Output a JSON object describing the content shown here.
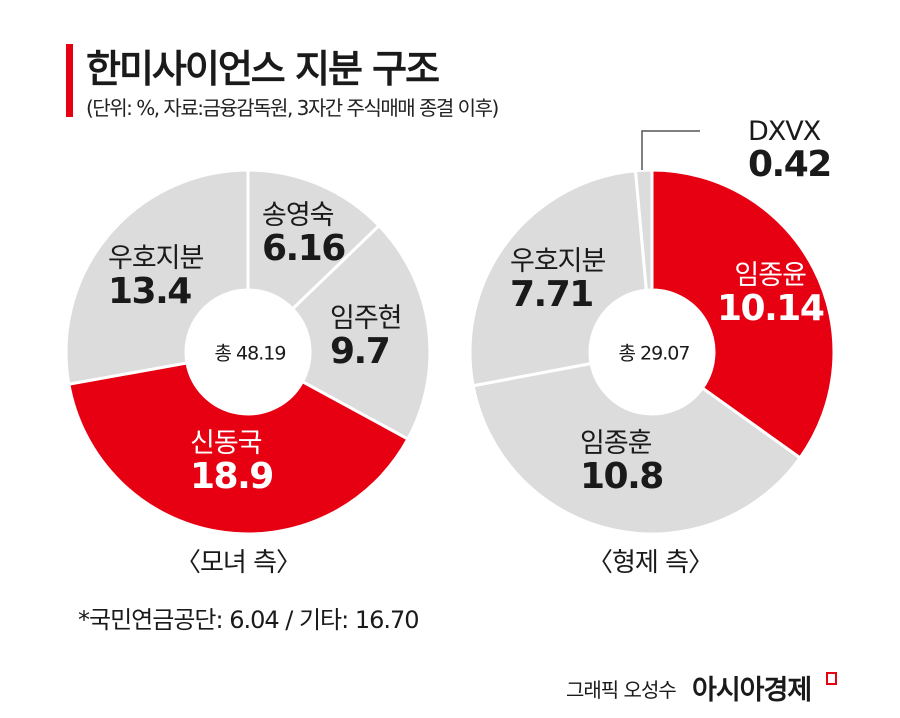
{
  "header": {
    "title": "한미사이언스 지분 구조",
    "subtitle": "(단위: %, 자료:금융감독원, 3자간 주식매매 종결 이후)"
  },
  "colors": {
    "accent": "#e60012",
    "neutral": "#dcdcdc",
    "separator": "#ffffff"
  },
  "chart_data": [
    {
      "type": "pie",
      "donut": true,
      "group_label": "〈모녀 측〉",
      "total_label": "총 48.19",
      "total": 48.19,
      "start": "top",
      "direction": "clockwise",
      "slices": [
        {
          "name": "송영숙",
          "value": 6.16,
          "value_label": "6.16",
          "color": "#dcdcdc"
        },
        {
          "name": "임주현",
          "value": 9.7,
          "value_label": "9.7",
          "color": "#dcdcdc"
        },
        {
          "name": "신동국",
          "value": 18.9,
          "value_label": "18.9",
          "color": "#e60012"
        },
        {
          "name": "우호지분",
          "value": 13.4,
          "value_label": "13.4",
          "color": "#dcdcdc"
        }
      ]
    },
    {
      "type": "pie",
      "donut": true,
      "group_label": "〈형제 측〉",
      "total_label": "총 29.07",
      "total": 29.07,
      "start": "top",
      "direction": "clockwise",
      "slices": [
        {
          "name": "임종윤",
          "value": 10.14,
          "value_label": "10.14",
          "color": "#e60012"
        },
        {
          "name": "임종훈",
          "value": 10.8,
          "value_label": "10.8",
          "color": "#dcdcdc"
        },
        {
          "name": "우호지분",
          "value": 7.71,
          "value_label": "7.71",
          "color": "#dcdcdc"
        },
        {
          "name": "DXVX",
          "value": 0.42,
          "value_label": "0.42",
          "color": "#dcdcdc"
        }
      ]
    }
  ],
  "footnote": "*국민연금공단: 6.04 / 기타: 16.70",
  "credit": "그래픽 오성수",
  "brand": "아시아경제"
}
